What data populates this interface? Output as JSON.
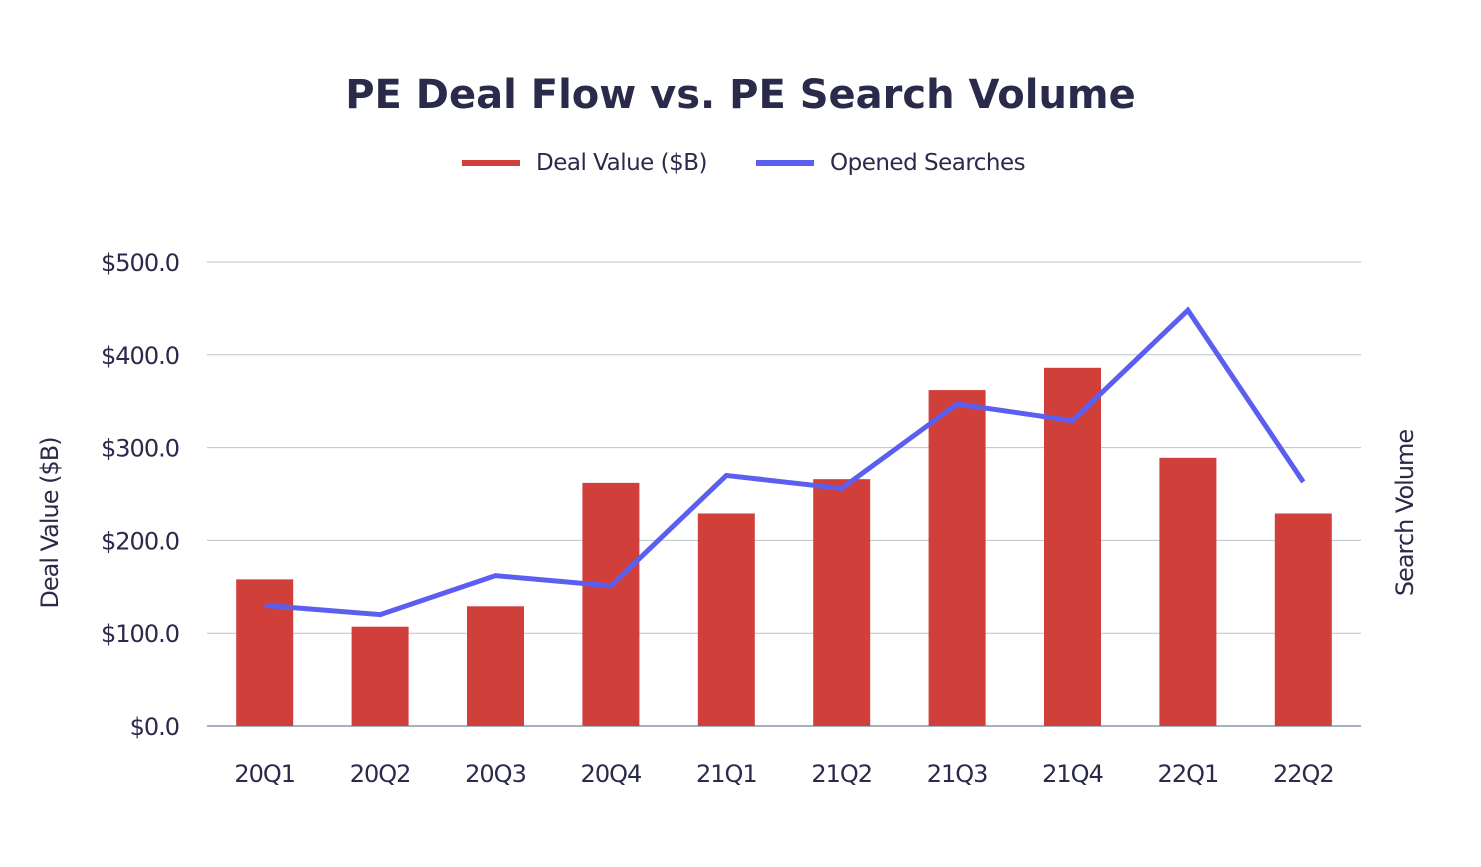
{
  "chart_data": {
    "type": "bar",
    "title": "PE Deal Flow vs. PE Search Volume",
    "categories": [
      "20Q1",
      "20Q2",
      "20Q3",
      "20Q4",
      "21Q1",
      "21Q2",
      "21Q3",
      "21Q4",
      "22Q1",
      "22Q2"
    ],
    "series": [
      {
        "name": "Deal Value ($B)",
        "type": "bar",
        "axis": "left",
        "color": "#d13f3b",
        "values": [
          158,
          107,
          129,
          262,
          229,
          266,
          362,
          386,
          289,
          229
        ]
      },
      {
        "name": "Opened Searches",
        "type": "line",
        "axis": "right",
        "color": "#5b5ff0",
        "values": [
          130,
          120,
          162,
          151,
          270,
          256,
          347,
          329,
          448,
          263
        ]
      }
    ],
    "ylabel": "Deal Value ($B)",
    "y2label": "Search Volume",
    "ylim": [
      0,
      500
    ],
    "yticks": [
      "$0.0",
      "$100.0",
      "$200.0",
      "$300.0",
      "$400.0",
      "$500.0"
    ],
    "grid": true,
    "legend_position": "top-center"
  }
}
